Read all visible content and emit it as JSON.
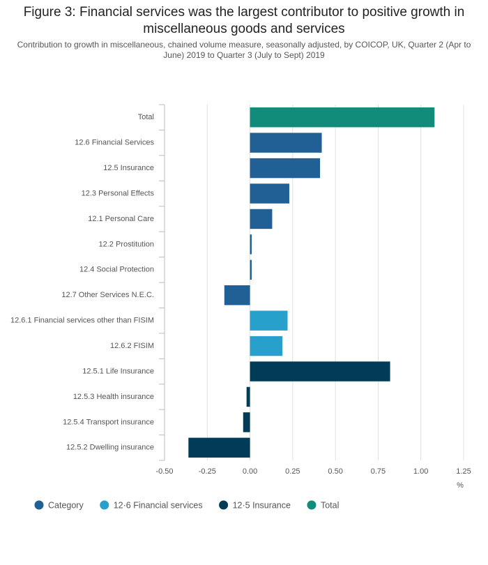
{
  "chart_data": {
    "type": "bar",
    "orientation": "horizontal",
    "title": "Figure 3: Financial services was the largest contributor to positive growth in miscellaneous goods and services",
    "subtitle": "Contribution to growth in miscellaneous, chained volume measure, seasonally adjusted, by COICOP, UK, Quarter 2 (Apr to June) 2019 to Quarter 3 (July to Sept) 2019",
    "xlabel": "%",
    "categories": [
      "Total",
      "12.6 Financial Services",
      "12.5 Insurance",
      "12.3 Personal Effects",
      "12.1 Personal Care",
      "12.2 Prostitution",
      "12.4 Social Protection",
      "12.7 Other Services N.E.C.",
      "12.6.1 Financial services other than FISIM",
      "12.6.2 FISIM",
      "12.5.1 Life Insurance",
      "12.5.3 Health insurance",
      "12.5.4 Transport insurance",
      "12.5.2 Dwelling insurance"
    ],
    "series": [
      {
        "name": "Category",
        "color": "#206095",
        "values": [
          null,
          0.42,
          0.41,
          0.23,
          0.13,
          0.01,
          0.01,
          -0.15,
          null,
          null,
          null,
          null,
          null,
          null
        ]
      },
      {
        "name": "12·6 Financial services",
        "color": "#27a0cc",
        "values": [
          null,
          null,
          null,
          null,
          null,
          null,
          null,
          null,
          0.22,
          0.19,
          null,
          null,
          null,
          null
        ]
      },
      {
        "name": "12·5 Insurance",
        "color": "#003c57",
        "values": [
          null,
          null,
          null,
          null,
          null,
          null,
          null,
          null,
          null,
          null,
          0.82,
          -0.02,
          -0.04,
          -0.36
        ]
      },
      {
        "name": "Total",
        "color": "#118c7b",
        "values": [
          1.08,
          null,
          null,
          null,
          null,
          null,
          null,
          null,
          null,
          null,
          null,
          null,
          null,
          null
        ]
      }
    ],
    "xlim": [
      -0.5,
      1.25
    ],
    "xticks": [
      {
        "value": -0.5,
        "label": "-0.50"
      },
      -0.25,
      {
        "value": 0,
        "label": "0.00"
      },
      0.25,
      {
        "value": 0.5,
        "label": "0.50"
      },
      0.75,
      {
        "value": 1,
        "label": "1.00"
      },
      1.25
    ],
    "grid": true,
    "legend": "bottom-left"
  }
}
